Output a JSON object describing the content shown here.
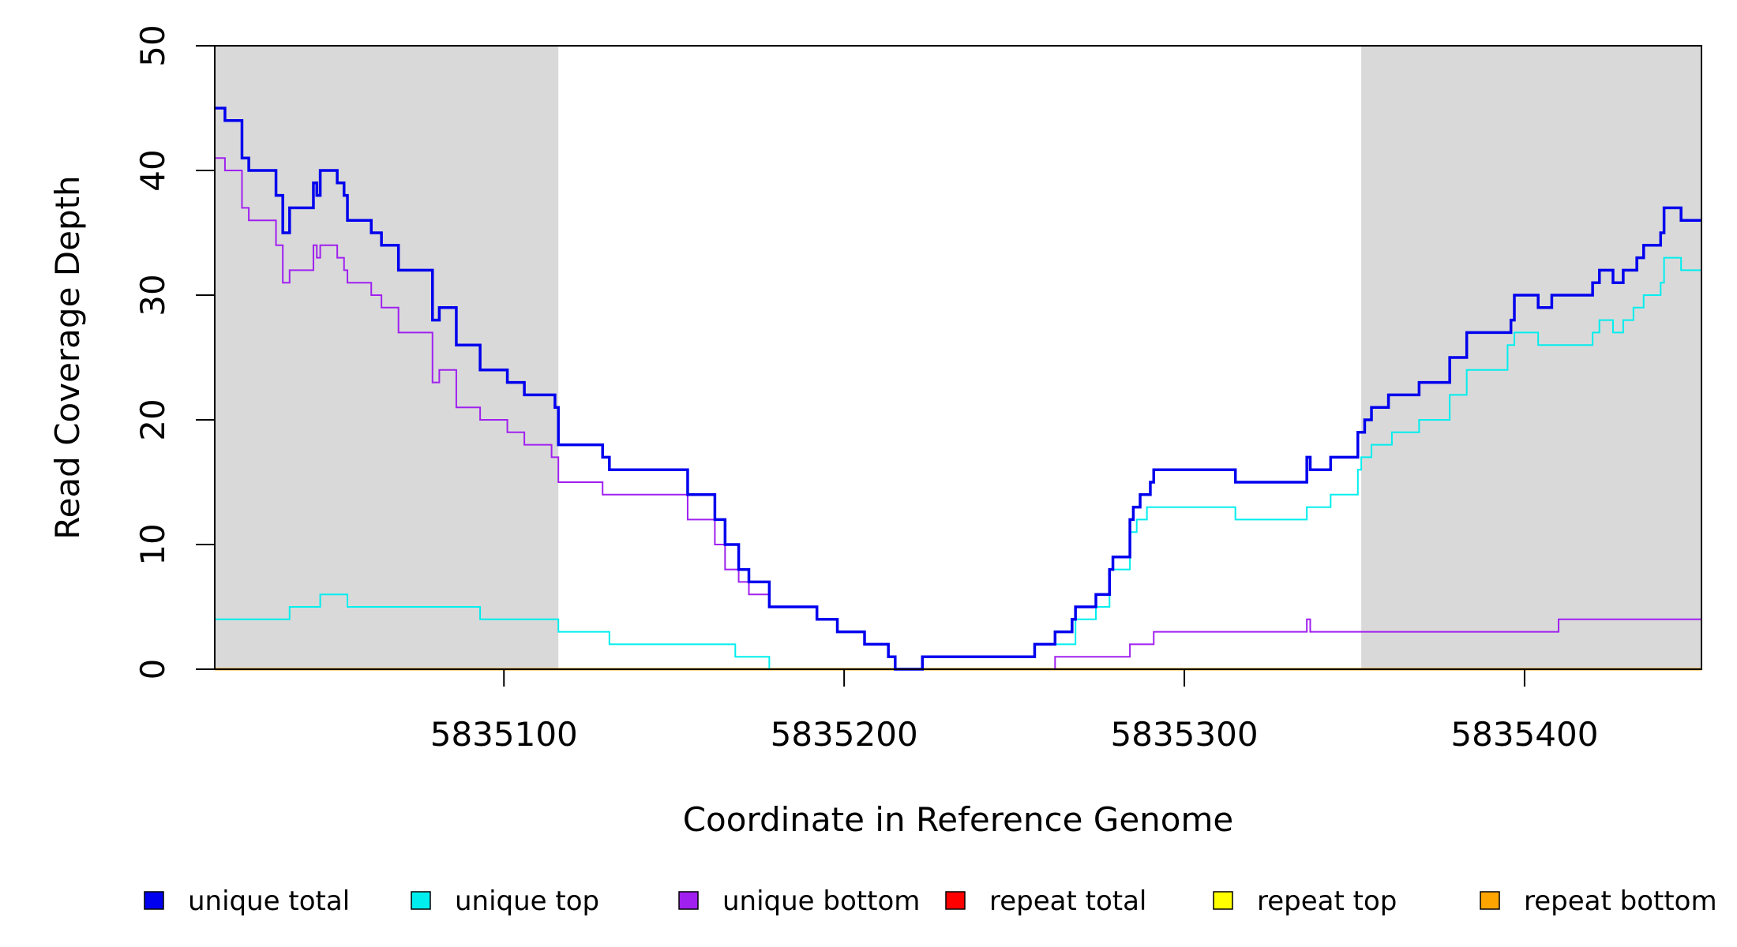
{
  "chart_data": {
    "type": "line",
    "title": "",
    "xlabel": "Coordinate in Reference Genome",
    "ylabel": "Read Coverage Depth",
    "xlim": [
      5835015,
      5835452
    ],
    "ylim": [
      0,
      50
    ],
    "x_ticks": [
      5835100,
      5835200,
      5835300,
      5835400
    ],
    "x_tick_labels": [
      "5835100",
      "5835200",
      "5835300",
      "5835400"
    ],
    "y_ticks": [
      0,
      10,
      20,
      30,
      40,
      50
    ],
    "y_tick_labels": [
      "0",
      "10",
      "20",
      "30",
      "40",
      "50"
    ],
    "grid": false,
    "legend_position": "bottom",
    "shaded_regions": [
      {
        "x0": 5835015,
        "x1": 5835116,
        "color": "#d9d9d9"
      },
      {
        "x0": 5835352,
        "x1": 5835452,
        "color": "#d9d9d9"
      }
    ],
    "series": [
      {
        "name": "unique total",
        "color": "#0000ee",
        "stroke": 3.5,
        "steps": [
          [
            5835015,
            45
          ],
          [
            5835018,
            44
          ],
          [
            5835023,
            41
          ],
          [
            5835025,
            40
          ],
          [
            5835033,
            38
          ],
          [
            5835035,
            35
          ],
          [
            5835037,
            37
          ],
          [
            5835044,
            39
          ],
          [
            5835045,
            38
          ],
          [
            5835046,
            40
          ],
          [
            5835051,
            39
          ],
          [
            5835053,
            38
          ],
          [
            5835054,
            36
          ],
          [
            5835061,
            35
          ],
          [
            5835064,
            34
          ],
          [
            5835069,
            32
          ],
          [
            5835079,
            28
          ],
          [
            5835081,
            29
          ],
          [
            5835086,
            26
          ],
          [
            5835093,
            24
          ],
          [
            5835101,
            23
          ],
          [
            5835106,
            22
          ],
          [
            5835115,
            21
          ],
          [
            5835116,
            18
          ],
          [
            5835129,
            17
          ],
          [
            5835131,
            16
          ],
          [
            5835154,
            14
          ],
          [
            5835162,
            12
          ],
          [
            5835165,
            10
          ],
          [
            5835169,
            8
          ],
          [
            5835172,
            7
          ],
          [
            5835178,
            5
          ],
          [
            5835192,
            4
          ],
          [
            5835198,
            3
          ],
          [
            5835206,
            2
          ],
          [
            5835213,
            1
          ],
          [
            5835215,
            0
          ],
          [
            5835223,
            1
          ],
          [
            5835256,
            2
          ],
          [
            5835262,
            3
          ],
          [
            5835267,
            4
          ],
          [
            5835268,
            5
          ],
          [
            5835274,
            6
          ],
          [
            5835278,
            8
          ],
          [
            5835279,
            9
          ],
          [
            5835284,
            12
          ],
          [
            5835285,
            13
          ],
          [
            5835287,
            14
          ],
          [
            5835290,
            15
          ],
          [
            5835291,
            16
          ],
          [
            5835315,
            15
          ],
          [
            5835336,
            17
          ],
          [
            5835337,
            16
          ],
          [
            5835343,
            17
          ],
          [
            5835351,
            19
          ],
          [
            5835353,
            20
          ],
          [
            5835355,
            21
          ],
          [
            5835360,
            22
          ],
          [
            5835369,
            23
          ],
          [
            5835378,
            25
          ],
          [
            5835383,
            27
          ],
          [
            5835396,
            28
          ],
          [
            5835397,
            30
          ],
          [
            5835404,
            29
          ],
          [
            5835408,
            30
          ],
          [
            5835420,
            31
          ],
          [
            5835422,
            32
          ],
          [
            5835426,
            31
          ],
          [
            5835429,
            32
          ],
          [
            5835433,
            33
          ],
          [
            5835435,
            34
          ],
          [
            5835440,
            35
          ],
          [
            5835441,
            37
          ],
          [
            5835446,
            36
          ],
          [
            5835452,
            36
          ]
        ]
      },
      {
        "name": "unique top",
        "color": "#00eeee",
        "stroke": 2,
        "steps": [
          [
            5835015,
            4
          ],
          [
            5835037,
            5
          ],
          [
            5835046,
            6
          ],
          [
            5835054,
            5
          ],
          [
            5835093,
            4
          ],
          [
            5835116,
            3
          ],
          [
            5835131,
            2
          ],
          [
            5835168,
            1
          ],
          [
            5835178,
            0
          ],
          [
            5835223,
            1
          ],
          [
            5835256,
            2
          ],
          [
            5835268,
            4
          ],
          [
            5835274,
            5
          ],
          [
            5835278,
            8
          ],
          [
            5835284,
            11
          ],
          [
            5835286,
            12
          ],
          [
            5835289,
            13
          ],
          [
            5835315,
            12
          ],
          [
            5835336,
            13
          ],
          [
            5835343,
            14
          ],
          [
            5835351,
            16
          ],
          [
            5835352,
            17
          ],
          [
            5835355,
            18
          ],
          [
            5835361,
            19
          ],
          [
            5835369,
            20
          ],
          [
            5835378,
            22
          ],
          [
            5835383,
            24
          ],
          [
            5835395,
            26
          ],
          [
            5835397,
            27
          ],
          [
            5835404,
            26
          ],
          [
            5835420,
            27
          ],
          [
            5835422,
            28
          ],
          [
            5835426,
            27
          ],
          [
            5835429,
            28
          ],
          [
            5835432,
            29
          ],
          [
            5835435,
            30
          ],
          [
            5835440,
            31
          ],
          [
            5835441,
            33
          ],
          [
            5835446,
            32
          ],
          [
            5835452,
            32
          ]
        ]
      },
      {
        "name": "unique bottom",
        "color": "#a020f0",
        "stroke": 2,
        "steps": [
          [
            5835015,
            41
          ],
          [
            5835018,
            40
          ],
          [
            5835023,
            37
          ],
          [
            5835025,
            36
          ],
          [
            5835033,
            34
          ],
          [
            5835035,
            31
          ],
          [
            5835037,
            32
          ],
          [
            5835044,
            34
          ],
          [
            5835045,
            33
          ],
          [
            5835046,
            34
          ],
          [
            5835051,
            33
          ],
          [
            5835053,
            32
          ],
          [
            5835054,
            31
          ],
          [
            5835061,
            30
          ],
          [
            5835064,
            29
          ],
          [
            5835069,
            27
          ],
          [
            5835079,
            23
          ],
          [
            5835081,
            24
          ],
          [
            5835086,
            21
          ],
          [
            5835093,
            20
          ],
          [
            5835101,
            19
          ],
          [
            5835106,
            18
          ],
          [
            5835114,
            17
          ],
          [
            5835116,
            15
          ],
          [
            5835129,
            14
          ],
          [
            5835154,
            12
          ],
          [
            5835162,
            10
          ],
          [
            5835165,
            8
          ],
          [
            5835169,
            7
          ],
          [
            5835172,
            6
          ],
          [
            5835178,
            5
          ],
          [
            5835192,
            4
          ],
          [
            5835198,
            3
          ],
          [
            5835206,
            2
          ],
          [
            5835213,
            1
          ],
          [
            5835215,
            0
          ],
          [
            5835262,
            1
          ],
          [
            5835284,
            2
          ],
          [
            5835291,
            3
          ],
          [
            5835336,
            4
          ],
          [
            5835337,
            3
          ],
          [
            5835410,
            4
          ],
          [
            5835452,
            4
          ]
        ]
      },
      {
        "name": "repeat total",
        "color": "#ff0000",
        "stroke": 2,
        "steps": [
          [
            5835015,
            0
          ],
          [
            5835452,
            0
          ]
        ]
      },
      {
        "name": "repeat top",
        "color": "#ffff00",
        "stroke": 2,
        "steps": [
          [
            5835015,
            0
          ],
          [
            5835452,
            0
          ]
        ]
      },
      {
        "name": "repeat bottom",
        "color": "#ffa500",
        "stroke": 3,
        "steps": [
          [
            5835015,
            0
          ],
          [
            5835452,
            0
          ]
        ]
      }
    ]
  }
}
